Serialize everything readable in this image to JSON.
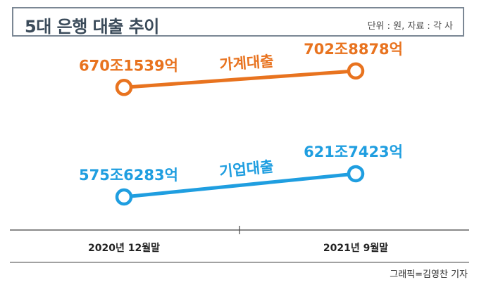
{
  "header": {
    "title": "5대 은행 대출 추이",
    "unit_source": "단위 : 원, 자료 : 각 사"
  },
  "credit": "그래픽=김영찬 기자",
  "chart_data": {
    "type": "line",
    "title": "5대 은행 대출 추이",
    "categories": [
      "2020년 12월말",
      "2021년 9월말"
    ],
    "series": [
      {
        "name": "가계대출",
        "color": "#e8731f",
        "values": [
          6701539,
          7028878
        ],
        "labels": [
          "670조1539억",
          "702조8878억"
        ]
      },
      {
        "name": "기업대출",
        "color": "#1f9ee0",
        "values": [
          5756283,
          6217423
        ],
        "labels": [
          "575조6283억",
          "621조7423억"
        ]
      }
    ],
    "value_unit": "억원"
  }
}
